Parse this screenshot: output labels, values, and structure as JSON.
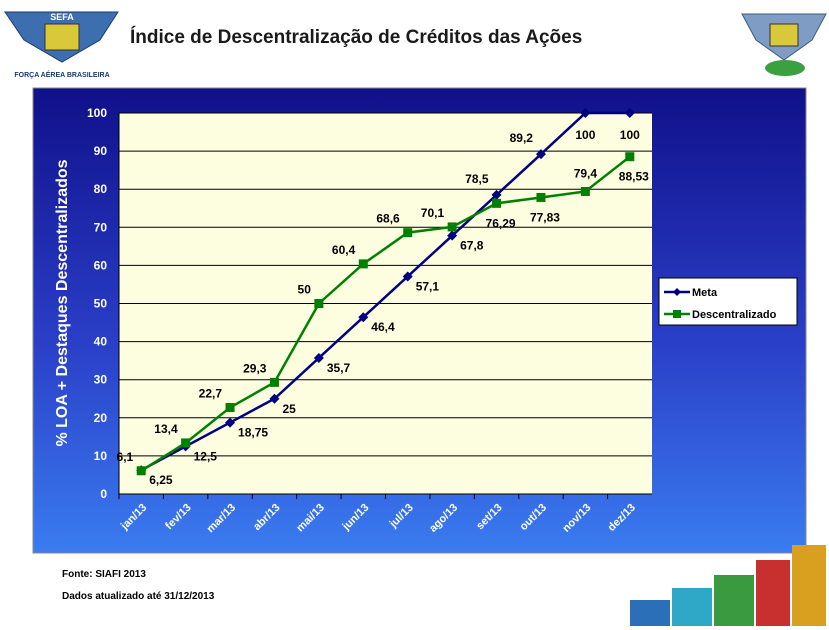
{
  "header": {
    "title": "Índice de Descentralização de Créditos das Ações",
    "logo_text": "SEFA",
    "logo_caption": "FORÇA AÉREA BRASILEIRA"
  },
  "footer": {
    "source": "Fonte:  SIAFI 2013",
    "updated": "Dados atualizado até 31/12/2013"
  },
  "chart_data": {
    "type": "line",
    "ylabel": "% LOA + Destaques Descentralizados",
    "categories": [
      "jan/13",
      "fev/13",
      "mar/13",
      "abr/13",
      "mai/13",
      "jun/13",
      "jul/13",
      "ago/13",
      "set/13",
      "out/13",
      "nov/13",
      "dez/13"
    ],
    "series": [
      {
        "name": "Meta",
        "color": "#000080",
        "marker": "diamond",
        "values": [
          6.25,
          12.5,
          18.75,
          25,
          35.7,
          46.4,
          57.1,
          67.8,
          78.5,
          89.2,
          100,
          100
        ],
        "value_labels": [
          "6,25",
          "12,5",
          "18,75",
          "25",
          "35,7",
          "46,4",
          "57,1",
          "67,8",
          "78,5",
          "89,2",
          "100",
          "100"
        ]
      },
      {
        "name": "Descentralizado",
        "color": "#008000",
        "marker": "square",
        "values": [
          6.1,
          13.4,
          22.7,
          29.3,
          50,
          60.4,
          68.6,
          70.1,
          76.29,
          77.83,
          79.4,
          88.53
        ],
        "value_labels": [
          "6,1",
          "13,4",
          "22,7",
          "29,3",
          "50",
          "60,4",
          "68,6",
          "70,1",
          "76,29",
          "77,83",
          "79,4",
          "88,53"
        ]
      }
    ],
    "ylim": [
      0,
      100
    ],
    "yticks": [
      0,
      10,
      20,
      30,
      40,
      50,
      60,
      70,
      80,
      90,
      100
    ],
    "grid": true,
    "legend": "right"
  }
}
